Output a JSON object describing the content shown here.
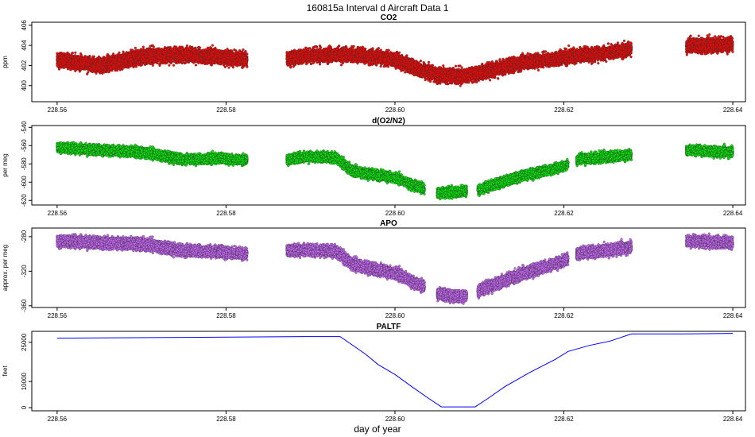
{
  "figure": {
    "title": "160815a   Interval d Aircraft Data 1",
    "xlabel": "day of year"
  },
  "chart_data": [
    {
      "type": "scatter",
      "title": "CO2",
      "ylabel": "ppm",
      "color": "#ff0000",
      "xlim": [
        228.557,
        228.6415
      ],
      "ylim": [
        398.4,
        406.3
      ],
      "xticks": [
        228.56,
        228.58,
        228.6,
        228.62,
        228.64
      ],
      "xtick_labels": [
        "228.56",
        "228.58",
        "228.60",
        "228.62",
        "228.64"
      ],
      "yticks": [
        400,
        402,
        404,
        406
      ],
      "ytick_labels": [
        "400",
        "402",
        "404",
        "406"
      ],
      "segments": [
        [
          228.56,
          228.5825
        ],
        [
          228.5872,
          228.628
        ],
        [
          228.6345,
          228.64
        ]
      ],
      "trend": {
        "x": [
          228.56,
          228.565,
          228.57,
          228.575,
          228.58,
          228.5825,
          228.5872,
          228.59,
          228.595,
          228.6,
          228.603,
          228.605,
          228.608,
          228.61,
          228.615,
          228.62,
          228.625,
          228.628,
          228.6345,
          228.64
        ],
        "y": [
          402.6,
          402.0,
          402.9,
          403.1,
          402.8,
          402.6,
          402.7,
          403.0,
          403.1,
          402.6,
          401.6,
          401.1,
          400.9,
          401.3,
          402.3,
          402.8,
          403.3,
          403.6,
          404.0,
          404.1
        ]
      },
      "noise": 0.55,
      "points_per_unit": 3600
    },
    {
      "type": "scatter",
      "title": "d(O2/N2)",
      "ylabel": "per meg",
      "color": "#00ee00",
      "xlim": [
        228.557,
        228.6415
      ],
      "ylim": [
        -625,
        -538
      ],
      "xticks": [
        228.56,
        228.58,
        228.6,
        228.62,
        228.64
      ],
      "xtick_labels": [
        "228.56",
        "228.58",
        "228.60",
        "228.62",
        "228.64"
      ],
      "yticks": [
        -540,
        -560,
        -580,
        -600,
        -620
      ],
      "ytick_labels": [
        "-540",
        "-560",
        "-580",
        "-600",
        "-620"
      ],
      "segments": [
        [
          228.56,
          228.5825
        ],
        [
          228.5872,
          228.6035
        ],
        [
          228.605,
          228.6085
        ],
        [
          228.6098,
          228.6205
        ],
        [
          228.6215,
          228.628
        ],
        [
          228.6345,
          228.64
        ]
      ],
      "trend": {
        "x": [
          228.56,
          228.565,
          228.57,
          228.575,
          228.58,
          228.5825,
          228.5872,
          228.59,
          228.593,
          228.595,
          228.6,
          228.603,
          228.605,
          228.608,
          228.61,
          228.615,
          228.62,
          228.6215,
          228.628,
          228.6345,
          228.64
        ],
        "y": [
          -562,
          -565,
          -567,
          -575,
          -574,
          -576,
          -575,
          -572,
          -573,
          -588,
          -595,
          -606,
          -612,
          -610,
          -608,
          -593,
          -583,
          -575,
          -570,
          -565,
          -567
        ]
      },
      "noise": 4.2,
      "points_per_unit": 3600
    },
    {
      "type": "scatter",
      "title": "APO",
      "ylabel": "approx. per meg",
      "color": "#cc66ff",
      "xlim": [
        228.557,
        228.6415
      ],
      "ylim": [
        -362,
        -270
      ],
      "xticks": [
        228.56,
        228.58,
        228.6,
        228.62,
        228.64
      ],
      "xtick_labels": [
        "228.56",
        "228.58",
        "228.60",
        "228.62",
        "228.64"
      ],
      "yticks": [
        -280,
        -320,
        -360
      ],
      "ytick_labels": [
        "-280",
        "-320",
        "-360"
      ],
      "segments": [
        [
          228.56,
          228.5825
        ],
        [
          228.5872,
          228.6035
        ],
        [
          228.605,
          228.6085
        ],
        [
          228.6098,
          228.6205
        ],
        [
          228.6215,
          228.628
        ],
        [
          228.6345,
          228.64
        ]
      ],
      "trend": {
        "x": [
          228.56,
          228.565,
          228.57,
          228.575,
          228.58,
          228.5825,
          228.5872,
          228.59,
          228.593,
          228.595,
          228.6,
          228.603,
          228.605,
          228.608,
          228.61,
          228.615,
          228.62,
          228.6215,
          228.628,
          228.6345,
          228.64
        ],
        "y": [
          -285,
          -287,
          -288,
          -296,
          -298,
          -300,
          -296,
          -296,
          -297,
          -312,
          -322,
          -336,
          -346,
          -350,
          -342,
          -323,
          -308,
          -300,
          -292,
          -285,
          -287
        ]
      },
      "noise": 5.2,
      "points_per_unit": 3600
    },
    {
      "type": "line",
      "title": "PALTF",
      "ylabel": "feet",
      "color": "#0000ff",
      "xlim": [
        228.557,
        228.6415
      ],
      "ylim": [
        -1200,
        29200
      ],
      "xticks": [
        228.56,
        228.58,
        228.6,
        228.62,
        228.64
      ],
      "xtick_labels": [
        "228.56",
        "228.58",
        "228.60",
        "228.62",
        "228.64"
      ],
      "yticks": [
        0,
        10000,
        25000
      ],
      "ytick_labels": [
        "0",
        "10000",
        "25000"
      ],
      "x": [
        228.56,
        228.575,
        228.59,
        228.5935,
        228.5965,
        228.598,
        228.6,
        228.602,
        228.604,
        228.6055,
        228.6095,
        228.611,
        228.613,
        228.616,
        228.619,
        228.6205,
        228.623,
        228.6255,
        228.628,
        228.634,
        228.64
      ],
      "y": [
        26600,
        26900,
        27200,
        27200,
        20500,
        16500,
        12700,
        8000,
        3500,
        300,
        300,
        3500,
        8000,
        13500,
        18500,
        21500,
        23800,
        25500,
        28200,
        28200,
        28400
      ]
    }
  ]
}
